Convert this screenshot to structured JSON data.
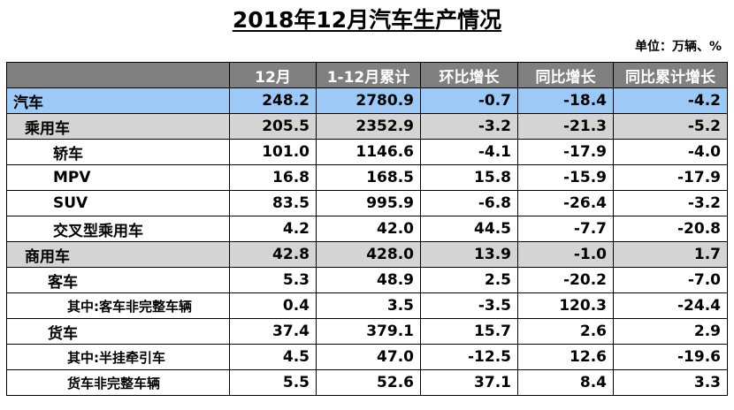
{
  "title": "2018年12月汽车生产情况",
  "unit": "单位：万辆、%",
  "columns": [
    "",
    "12月",
    "1-12月累计",
    "环比增长",
    "同比增长",
    "同比累计增长"
  ],
  "rows": [
    {
      "name": "汽车",
      "values": [
        "248.2",
        "2780.9",
        "-0.7",
        "-18.4",
        "-4.2"
      ]
    },
    {
      "name": "乘用车",
      "values": [
        "205.5",
        "2352.9",
        "-3.2",
        "-21.3",
        "-5.2"
      ]
    },
    {
      "name": "轿车",
      "values": [
        "101.0",
        "1146.6",
        "-4.1",
        "-17.9",
        "-4.0"
      ]
    },
    {
      "name": "MPV",
      "values": [
        "16.8",
        "168.5",
        "15.8",
        "-15.9",
        "-17.9"
      ]
    },
    {
      "name": "SUV",
      "values": [
        "83.5",
        "995.9",
        "-6.8",
        "-26.4",
        "-3.2"
      ]
    },
    {
      "name": "交叉型乘用车",
      "values": [
        "4.2",
        "42.0",
        "44.5",
        "-7.7",
        "-20.8"
      ]
    },
    {
      "name": "商用车",
      "values": [
        "42.8",
        "428.0",
        "13.9",
        "-1.0",
        "1.7"
      ]
    },
    {
      "name": "客车",
      "values": [
        "5.3",
        "48.9",
        "2.5",
        "-20.2",
        "-7.0"
      ]
    },
    {
      "name": "其中:客车非完整车辆",
      "values": [
        "0.4",
        "3.5",
        "-3.5",
        "120.3",
        "-24.4"
      ]
    },
    {
      "name": "货车",
      "values": [
        "37.4",
        "379.1",
        "15.7",
        "2.6",
        "2.9"
      ]
    },
    {
      "name": "其中:半挂牵引车",
      "values": [
        "4.5",
        "47.0",
        "-12.5",
        "12.6",
        "-19.6"
      ]
    },
    {
      "name": "货车非完整车辆",
      "values": [
        "5.5",
        "52.6",
        "37.1",
        "8.4",
        "3.3"
      ]
    }
  ],
  "colors": {
    "header_bg": "#808080",
    "total_bg": "#9cc9f5",
    "category_bg": "#d4d4d4"
  }
}
